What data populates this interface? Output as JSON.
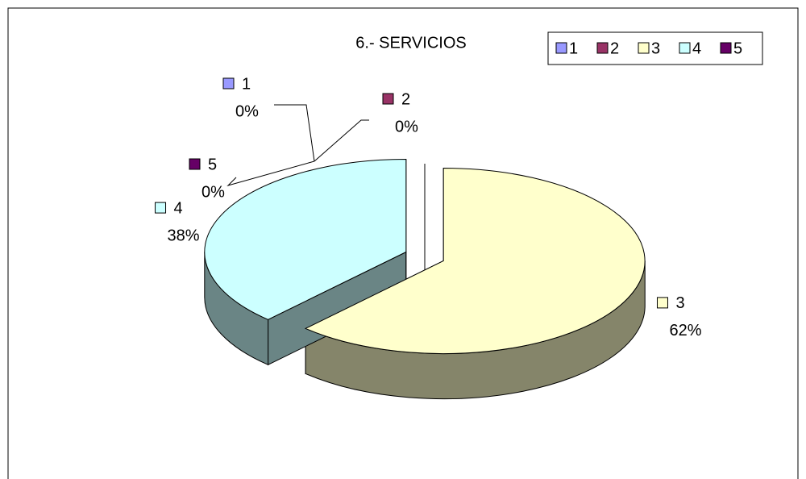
{
  "chart_data": {
    "type": "pie",
    "title": "6.- SERVICIOS",
    "categories": [
      "1",
      "2",
      "3",
      "4",
      "5"
    ],
    "values": [
      0,
      0,
      62,
      38,
      0
    ],
    "value_labels": [
      "0%",
      "0%",
      "62%",
      "38%",
      "0%"
    ],
    "colors": [
      "#9999ff",
      "#993366",
      "#ffffcc",
      "#ccffff",
      "#660066"
    ],
    "legend": "top-right",
    "three_d": true,
    "exploded": true
  }
}
